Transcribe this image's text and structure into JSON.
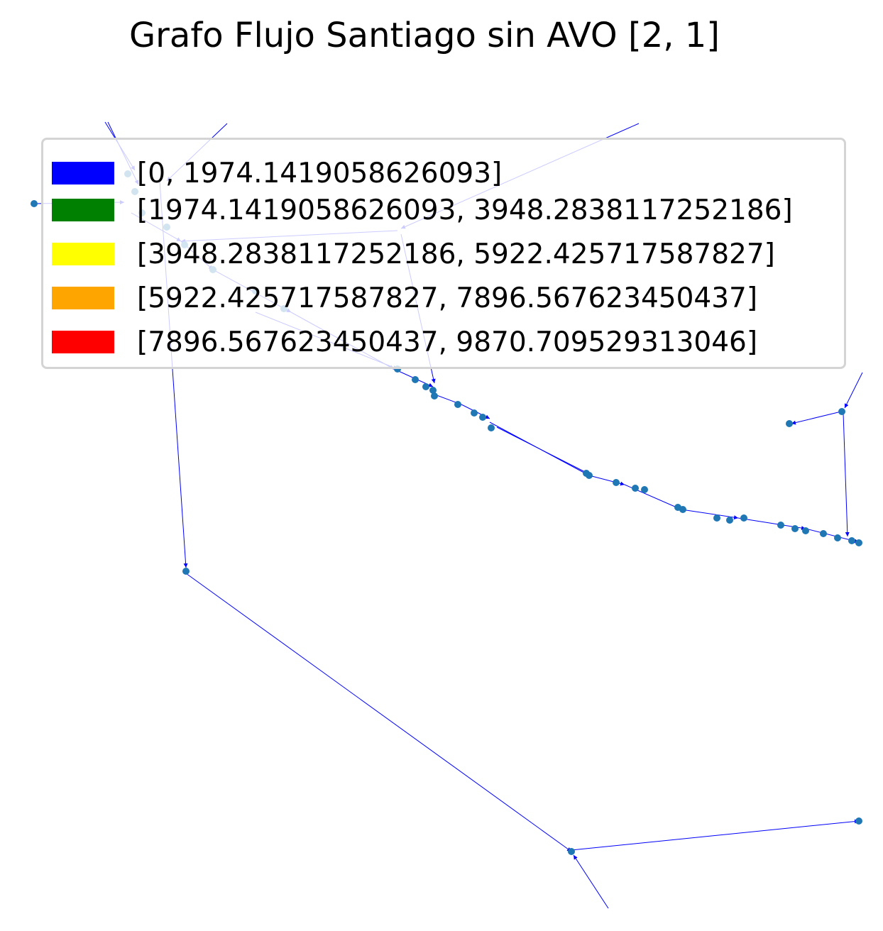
{
  "chart_data": {
    "type": "network-graph",
    "title": "Grafo Flujo Santiago sin AVO [2, 1]",
    "node_color": "#1f77b4",
    "legend_placement": "upper",
    "legend": [
      {
        "label": "[0, 1974.1419058626093]",
        "color": "#0000ff"
      },
      {
        "label": "[1974.1419058626093, 3948.2838117252186]",
        "color": "#008000"
      },
      {
        "label": "[3948.2838117252186, 5922.425717587827]",
        "color": "#ffff00"
      },
      {
        "label": "[5922.425717587827, 7896.567623450437]",
        "color": "#ffa500"
      },
      {
        "label": "[7896.567623450437, 9870.709529313046]",
        "color": "#ff0000"
      }
    ]
  }
}
